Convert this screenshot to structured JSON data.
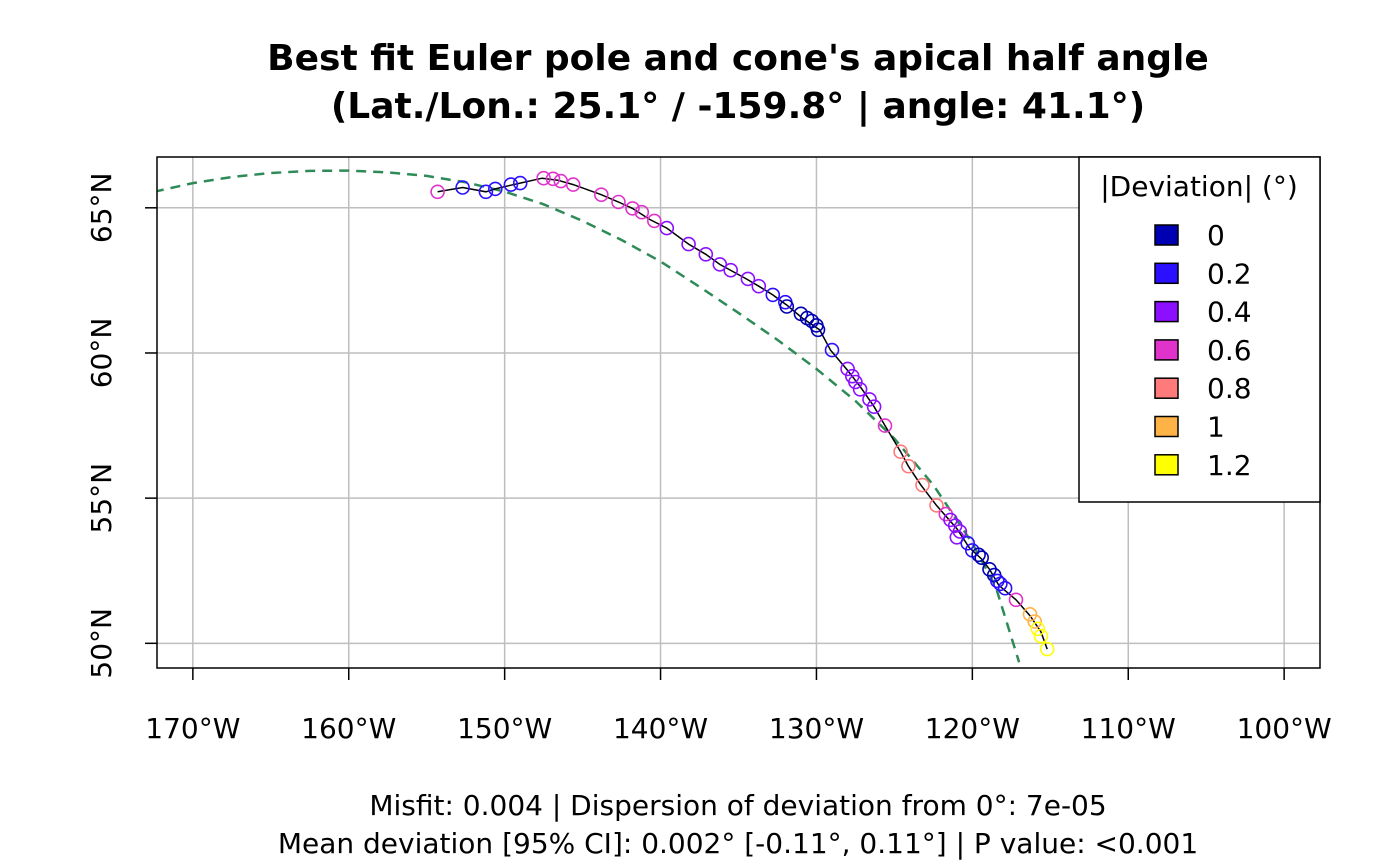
{
  "chart_data": {
    "type": "scatter",
    "title_line1": "Best fit Euler pole and cone's apical half angle",
    "title_line2": "(Lat./Lon.: 25.1° / -159.8° | angle: 41.1°)",
    "footer_line1": "Misfit: 0.004 | Dispersion of deviation from 0°: 7e-05",
    "footer_line2": "Mean deviation [95% CI]: 0.002° [-0.11°, 0.11°] | P value: <0.001",
    "xlim": [
      -172.3,
      -97.7
    ],
    "ylim": [
      49.15,
      66.75
    ],
    "x_ticks": [
      -170,
      -160,
      -150,
      -140,
      -130,
      -120,
      -110,
      -100
    ],
    "x_tick_labels": [
      "170°W",
      "160°W",
      "150°W",
      "140°W",
      "130°W",
      "120°W",
      "110°W",
      "100°W"
    ],
    "y_ticks": [
      50,
      55,
      60,
      65
    ],
    "y_tick_labels": [
      "50°N",
      "55°N",
      "60°N",
      "65°N"
    ],
    "grid": true,
    "legend": {
      "position": "top-right",
      "title": "|Deviation| (°)",
      "entries": [
        {
          "label": "0",
          "color": "#0000B3"
        },
        {
          "label": "0.2",
          "color": "#2B0FFF"
        },
        {
          "label": "0.4",
          "color": "#8C0FFF"
        },
        {
          "label": "0.6",
          "color": "#E033CC"
        },
        {
          "label": "0.8",
          "color": "#FF7A7A"
        },
        {
          "label": "1",
          "color": "#FFB347"
        },
        {
          "label": "1.2",
          "color": "#FFFF00"
        }
      ]
    },
    "cone_small_circle": {
      "color": "#2E8B57",
      "x": [
        -172.5,
        -170,
        -167.5,
        -165,
        -162.5,
        -160,
        -157.5,
        -155,
        -152.5,
        -150,
        -147.5,
        -145,
        -142.5,
        -140,
        -137.5,
        -135,
        -132.5,
        -130,
        -127.5,
        -125,
        -122.5,
        -120,
        -118.5,
        -117
      ],
      "y": [
        65.55,
        65.85,
        66.06,
        66.2,
        66.27,
        66.28,
        66.22,
        66.1,
        65.88,
        65.56,
        65.12,
        64.55,
        63.89,
        63.15,
        62.28,
        61.38,
        60.45,
        59.45,
        58.35,
        57.05,
        55.45,
        53.45,
        51.95,
        49.35
      ]
    },
    "observed_trace": {
      "color": "#000000",
      "x": [
        -154.3,
        -152.7,
        -151.2,
        -150.6,
        -149.6,
        -149.0,
        -147.6,
        -146.6,
        -145.6,
        -143.8,
        -142.7,
        -141.8,
        -140.7,
        -139.6,
        -138.2,
        -137.1,
        -136.2,
        -134.5,
        -133.7,
        -132.8,
        -131.9,
        -130.9,
        -129.8,
        -129.1,
        -128.0,
        -127.2,
        -126.3,
        -125.6,
        -124.6,
        -124.1,
        -123.3,
        -122.3,
        -121.0,
        -120.2,
        -119.4,
        -118.9,
        -118.3,
        -117.2,
        -116.3,
        -115.6,
        -115.2
      ],
      "y": [
        65.55,
        65.7,
        65.55,
        65.65,
        65.78,
        65.85,
        66.02,
        65.95,
        65.8,
        65.45,
        65.2,
        64.98,
        64.6,
        64.3,
        63.75,
        63.4,
        63.05,
        62.55,
        62.3,
        62.0,
        61.65,
        61.2,
        60.8,
        60.1,
        59.4,
        58.85,
        58.15,
        57.5,
        56.6,
        56.1,
        55.45,
        54.75,
        53.95,
        53.3,
        52.9,
        52.55,
        52.0,
        51.5,
        50.95,
        50.4,
        49.8
      ]
    },
    "points": [
      {
        "x": -154.3,
        "y": 65.55,
        "dev": "0.6"
      },
      {
        "x": -152.7,
        "y": 65.7,
        "dev": "0.2"
      },
      {
        "x": -151.2,
        "y": 65.55,
        "dev": "0.2"
      },
      {
        "x": -150.6,
        "y": 65.65,
        "dev": "0.2"
      },
      {
        "x": -149.6,
        "y": 65.8,
        "dev": "0.2"
      },
      {
        "x": -149.0,
        "y": 65.85,
        "dev": "0.2"
      },
      {
        "x": -147.5,
        "y": 66.02,
        "dev": "0.6"
      },
      {
        "x": -146.9,
        "y": 66.0,
        "dev": "0.6"
      },
      {
        "x": -146.4,
        "y": 65.92,
        "dev": "0.6"
      },
      {
        "x": -145.6,
        "y": 65.8,
        "dev": "0.6"
      },
      {
        "x": -143.8,
        "y": 65.45,
        "dev": "0.6"
      },
      {
        "x": -142.7,
        "y": 65.2,
        "dev": "0.6"
      },
      {
        "x": -141.8,
        "y": 64.98,
        "dev": "0.6"
      },
      {
        "x": -141.2,
        "y": 64.85,
        "dev": "0.6"
      },
      {
        "x": -140.4,
        "y": 64.55,
        "dev": "0.6"
      },
      {
        "x": -139.6,
        "y": 64.3,
        "dev": "0.4"
      },
      {
        "x": -138.2,
        "y": 63.75,
        "dev": "0.4"
      },
      {
        "x": -137.1,
        "y": 63.4,
        "dev": "0.4"
      },
      {
        "x": -136.2,
        "y": 63.05,
        "dev": "0.4"
      },
      {
        "x": -135.5,
        "y": 62.85,
        "dev": "0.4"
      },
      {
        "x": -134.4,
        "y": 62.55,
        "dev": "0.4"
      },
      {
        "x": -133.7,
        "y": 62.3,
        "dev": "0.4"
      },
      {
        "x": -132.8,
        "y": 62.0,
        "dev": "0.2"
      },
      {
        "x": -132.0,
        "y": 61.75,
        "dev": "0.2"
      },
      {
        "x": -131.9,
        "y": 61.6,
        "dev": "0.0"
      },
      {
        "x": -131.0,
        "y": 61.35,
        "dev": "0.0"
      },
      {
        "x": -130.6,
        "y": 61.2,
        "dev": "0.0"
      },
      {
        "x": -130.3,
        "y": 61.1,
        "dev": "0.0"
      },
      {
        "x": -130.0,
        "y": 60.95,
        "dev": "0.0"
      },
      {
        "x": -129.9,
        "y": 60.8,
        "dev": "0.0"
      },
      {
        "x": -129.0,
        "y": 60.1,
        "dev": "0.2"
      },
      {
        "x": -128.0,
        "y": 59.45,
        "dev": "0.4"
      },
      {
        "x": -127.7,
        "y": 59.2,
        "dev": "0.4"
      },
      {
        "x": -127.5,
        "y": 59.0,
        "dev": "0.4"
      },
      {
        "x": -127.2,
        "y": 58.75,
        "dev": "0.4"
      },
      {
        "x": -126.6,
        "y": 58.4,
        "dev": "0.4"
      },
      {
        "x": -126.3,
        "y": 58.15,
        "dev": "0.4"
      },
      {
        "x": -125.6,
        "y": 57.5,
        "dev": "0.6"
      },
      {
        "x": -124.6,
        "y": 56.6,
        "dev": "0.8"
      },
      {
        "x": -124.1,
        "y": 56.1,
        "dev": "0.8"
      },
      {
        "x": -123.2,
        "y": 55.45,
        "dev": "0.8"
      },
      {
        "x": -122.3,
        "y": 54.75,
        "dev": "0.8"
      },
      {
        "x": -121.7,
        "y": 54.45,
        "dev": "0.6"
      },
      {
        "x": -121.4,
        "y": 54.25,
        "dev": "0.4"
      },
      {
        "x": -121.1,
        "y": 54.05,
        "dev": "0.4"
      },
      {
        "x": -120.8,
        "y": 53.85,
        "dev": "0.4"
      },
      {
        "x": -121.0,
        "y": 53.65,
        "dev": "0.4"
      },
      {
        "x": -120.3,
        "y": 53.45,
        "dev": "0.2"
      },
      {
        "x": -120.0,
        "y": 53.2,
        "dev": "0.2"
      },
      {
        "x": -119.6,
        "y": 53.05,
        "dev": "0.0"
      },
      {
        "x": -119.4,
        "y": 52.95,
        "dev": "0.0"
      },
      {
        "x": -118.9,
        "y": 52.55,
        "dev": "0.0"
      },
      {
        "x": -118.6,
        "y": 52.35,
        "dev": "0.0"
      },
      {
        "x": -118.4,
        "y": 52.15,
        "dev": "0.2"
      },
      {
        "x": -118.2,
        "y": 52.05,
        "dev": "0.2"
      },
      {
        "x": -117.9,
        "y": 51.9,
        "dev": "0.2"
      },
      {
        "x": -117.2,
        "y": 51.5,
        "dev": "0.6"
      },
      {
        "x": -116.3,
        "y": 51.0,
        "dev": "1"
      },
      {
        "x": -116.0,
        "y": 50.75,
        "dev": "1"
      },
      {
        "x": -115.8,
        "y": 50.5,
        "dev": "1.2"
      },
      {
        "x": -115.6,
        "y": 50.25,
        "dev": "1.2"
      },
      {
        "x": -115.2,
        "y": 49.8,
        "dev": "1.2"
      }
    ]
  }
}
